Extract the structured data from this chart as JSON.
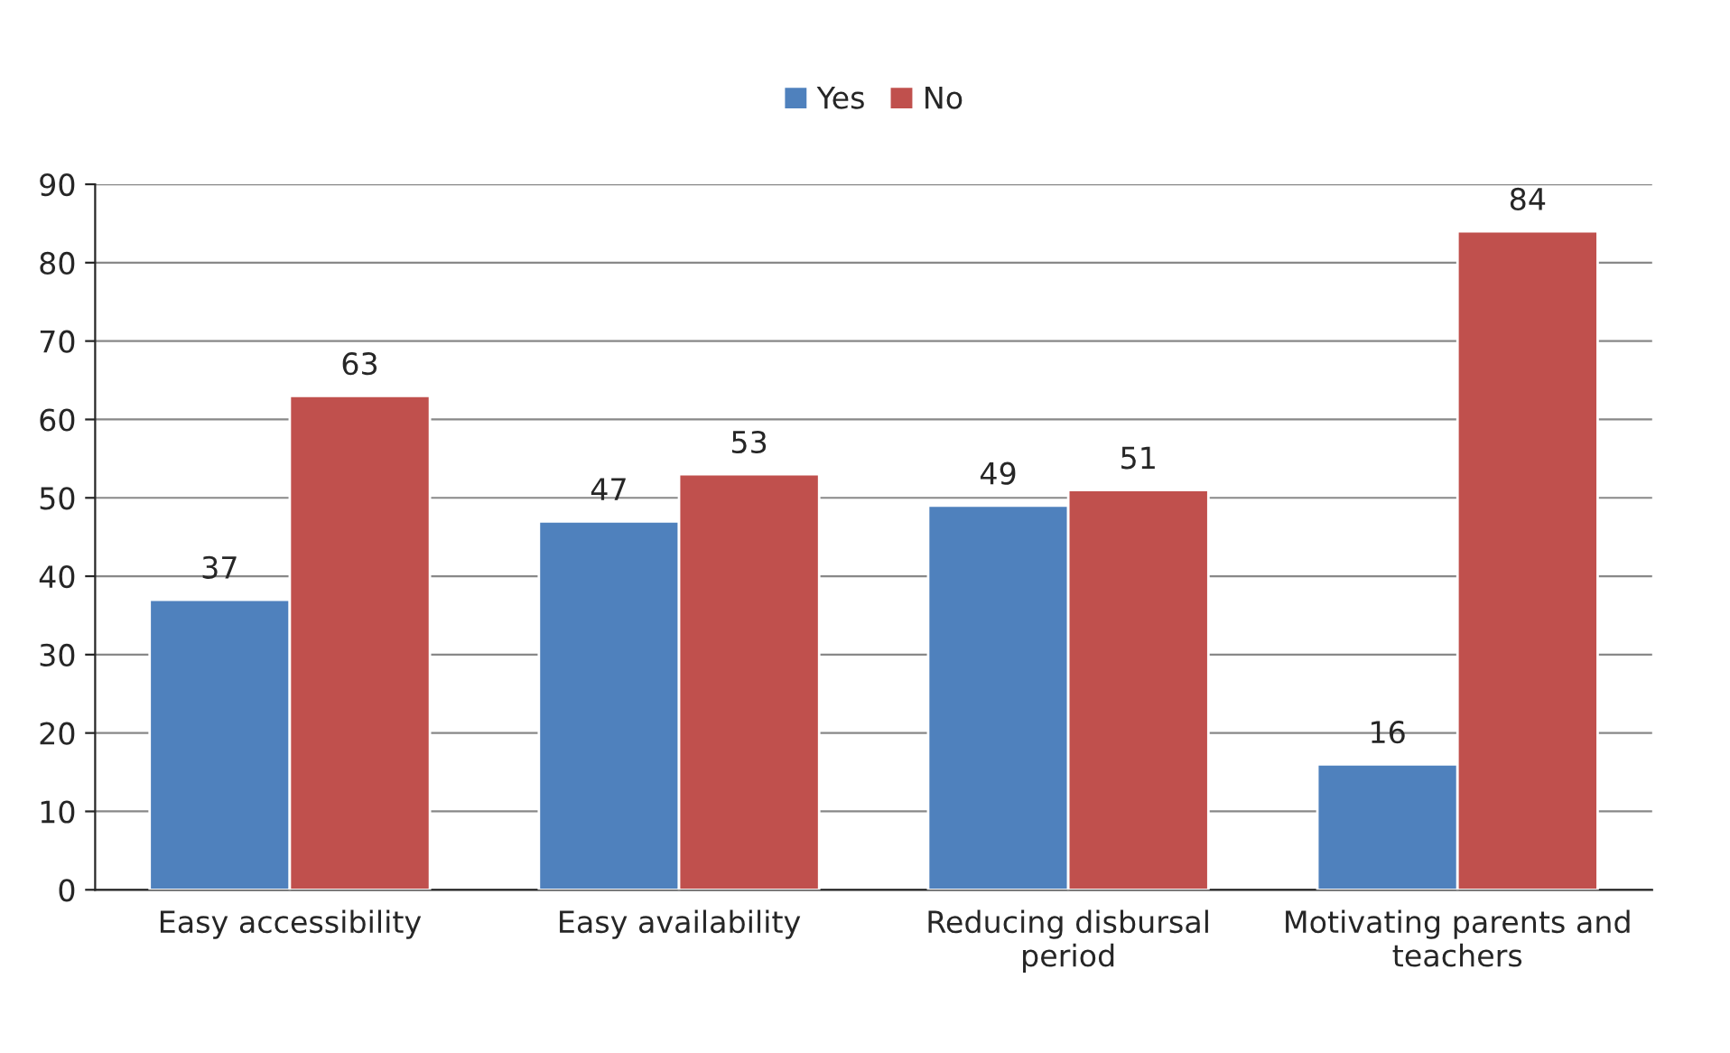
{
  "chart_data": {
    "type": "bar",
    "categories": [
      "Easy accessibility",
      "Easy availability",
      "Reducing disbursal period",
      "Motivating parents and teachers"
    ],
    "series": [
      {
        "name": "Yes",
        "color": "#4f81bd",
        "values": [
          37,
          47,
          49,
          16
        ]
      },
      {
        "name": "No",
        "color": "#c0504d",
        "values": [
          63,
          53,
          51,
          84
        ]
      }
    ],
    "ylim": [
      0,
      90
    ],
    "yticks": [
      0,
      10,
      20,
      30,
      40,
      50,
      60,
      70,
      80,
      90
    ],
    "grid": "y",
    "legend": "top",
    "data_labels": true
  }
}
